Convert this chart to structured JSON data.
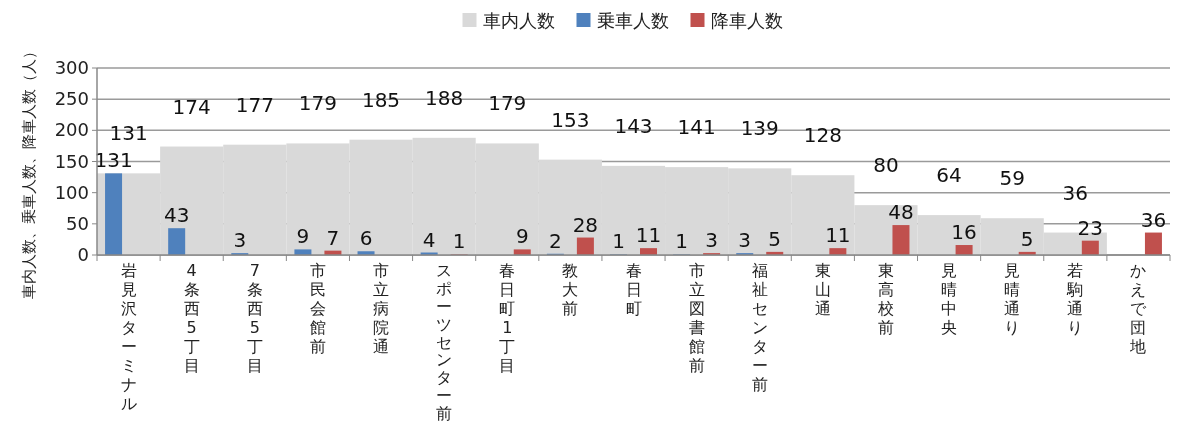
{
  "chart_data": {
    "type": "bar",
    "ylabel": "車内人数、乗車人数、降車人数（人）",
    "categories": [
      "岩見沢ターミナル",
      "4条西5丁目",
      "7条西5丁目",
      "市民会館前",
      "市立病院通",
      "スポーツセンター前",
      "春日町1丁目",
      "教大前",
      "春日町",
      "市立図書館前",
      "福祉センター前",
      "東山通",
      "東高校前",
      "見晴中央",
      "見晴通り",
      "若駒通り",
      "かえで団地"
    ],
    "series": [
      {
        "name": "車内人数",
        "color": "#d9d9d9",
        "values": [
          131,
          174,
          177,
          179,
          185,
          188,
          179,
          153,
          143,
          141,
          139,
          128,
          80,
          64,
          59,
          36,
          0
        ],
        "value_labels": [
          "131",
          "174",
          "177",
          "179",
          "185",
          "188",
          "179",
          "153",
          "143",
          "141",
          "139",
          "128",
          "80",
          "64",
          "59",
          "36",
          null
        ]
      },
      {
        "name": "乗車人数",
        "color": "#4f81bd",
        "values": [
          131,
          43,
          3,
          9,
          6,
          4,
          0,
          2,
          1,
          1,
          3,
          0,
          0,
          0,
          0,
          0,
          0
        ],
        "value_labels": [
          "131",
          "43",
          "3",
          "9",
          "6",
          "4",
          null,
          "2",
          "1",
          "1",
          "3",
          null,
          null,
          null,
          null,
          null,
          null
        ]
      },
      {
        "name": "降車人数",
        "color": "#c0504d",
        "values": [
          0,
          0,
          0,
          7,
          0,
          1,
          9,
          28,
          11,
          3,
          5,
          11,
          48,
          16,
          5,
          23,
          36
        ],
        "value_labels": [
          null,
          null,
          null,
          "7",
          null,
          "1",
          "9",
          "28",
          "11",
          "3",
          "5",
          "11",
          "48",
          "16",
          "5",
          "23",
          "36"
        ]
      }
    ],
    "ylim": [
      0,
      300
    ],
    "yticks": [
      0,
      50,
      100,
      150,
      200,
      250,
      300
    ],
    "grid": "y",
    "legend": "top"
  }
}
